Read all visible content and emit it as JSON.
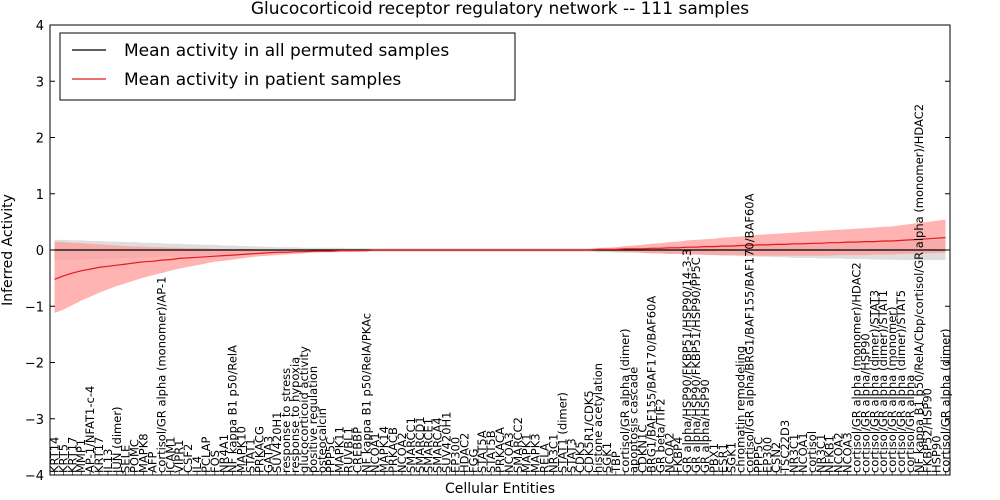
{
  "chart_data": {
    "type": "line",
    "title": "Glucocorticoid receptor regulatory network -- 111 samples",
    "xlabel": "Cellular Entities",
    "ylabel": "Inferred Activity",
    "ylim": [
      -4,
      4
    ],
    "yticks": [
      "4",
      "3",
      "2",
      "1",
      "0",
      "−1",
      "−2",
      "−3",
      "−4"
    ],
    "grid": false,
    "legend_position": "top-left",
    "colors": {
      "permuted": "#000000",
      "patient": "#e31a1c",
      "patient_band": "#ff9a9a",
      "permuted_band": "#c8c8c8"
    },
    "categories": [
      "KRT14",
      "KRT5",
      "KRT17",
      "MMP1",
      "AP-1/NFAT1-c-4",
      "KRT17",
      "IL13",
      "JUN (dimer)",
      "SELE",
      "POMC",
      "MAPK8",
      "AFP",
      "cortisol/GR alpha (monomer)/AP-1",
      "ICAM1",
      "VIPR1",
      "CSF2",
      "IL4",
      "PCLAP",
      "FOS",
      "NR4A1",
      "NF kappa B1 p50/RelA",
      "MAPK10",
      "STAT1",
      "PRKACG",
      "GATA3",
      "SUV420H1",
      "response to stress",
      "response to hypoxia",
      "glucocorticoid activity",
      "positive regulation",
      "osteocalcin",
      "PPP5C",
      "MAPK11",
      "RUVBL1",
      "CREBBP",
      "NF kappa B1 p50/RelA/PKAc",
      "NCOA1",
      "MAPK14",
      "PRKACB",
      "NCOA2",
      "SMARCC1",
      "SMARCD1",
      "SMARCE1",
      "SMARCA4",
      "SUV420H1",
      "EP300",
      "HDAC2",
      "FGG",
      "STAT5A",
      "STAT5B",
      "PRKACA",
      "NCOA3",
      "SMARCC2",
      "MAPK1",
      "MAPK3",
      "RELA",
      "NR3C1",
      "STAT1 (dimer)",
      "STAT3",
      "CDK5",
      "CDK5R1/CDK5",
      "histone acetylation",
      "SGK1",
      "TBP",
      "cortisol/GR alpha (dimer)",
      "apoptosis cascade",
      "CDKN1C",
      "BRG1/BAF155/BAF170/BAF60A",
      "GR beta/TIF2",
      "NCOA2",
      "FKBP4",
      "GR alpha/HSP90/FKBP51/HSP90/14-3-3",
      "GR alpha/HSP90/FKBP51/HSP90/PP5C",
      "GR alpha/HSP90",
      "PBX1",
      "ESR1",
      "SGK1",
      "chromatin remodeling",
      "cortisol/GR alpha/BRG1/BAF155/BAF170/BAF60A",
      "PPP5C",
      "EP300",
      "CSN2",
      "TSC22D3",
      "NR3C1",
      "NCOA1",
      "cortisol",
      "NR3C1",
      "NFKB1",
      "NCOA2",
      "NCOA3",
      "cortisol/GR alpha (monomer)/HDAC2",
      "cortisol/GR alpha/HSP90",
      "cortisol/GR alpha (dimer)/STAT3",
      "cortisol/GR alpha (dimer)/STAT1",
      "cortisol/GR alpha (monomer)",
      "cortisol/GR alpha (dimer)/STAT5",
      "cortisol/GR alpha",
      "NF kappa B1 p50/RelA/Cbp/cortisol/GR alpha (monomer)/HDAC2",
      "FKBP52/HSP90",
      "HSP90",
      "cortisol/GR alpha (dimer)"
    ],
    "series": [
      {
        "name": "Mean activity in all permuted samples",
        "color": "#000000",
        "values": [
          0.0,
          0.0,
          0.0,
          0.0,
          0.0,
          0.0,
          0.0,
          0.0,
          0.0,
          0.0,
          0.0,
          0.0,
          0.0,
          0.0,
          0.0,
          0.0,
          0.0,
          0.0,
          0.0,
          0.0,
          0.0,
          0.0,
          0.0,
          0.0,
          0.0,
          0.0,
          0.0,
          0.0,
          0.0,
          0.0,
          0.0,
          0.0,
          0.0,
          0.0,
          0.0,
          0.0,
          0.0,
          0.0,
          0.0,
          0.0,
          0.0,
          0.0,
          0.0,
          0.0,
          0.0,
          0.0,
          0.0,
          0.0,
          0.0,
          0.0,
          0.0,
          0.0,
          0.0,
          0.0,
          0.0,
          0.0,
          0.0,
          0.0,
          0.0,
          0.0,
          0.0,
          0.0,
          0.0,
          0.0,
          0.0,
          0.0,
          0.0,
          0.0,
          0.0,
          0.0,
          0.0,
          0.0,
          0.0,
          0.0,
          0.0,
          0.0,
          0.0,
          0.0,
          0.0,
          0.0,
          0.0,
          0.0,
          0.0,
          0.0,
          0.0,
          0.0,
          0.0,
          0.0,
          0.0,
          0.0,
          0.0,
          0.0,
          0.0,
          0.0,
          0.0,
          0.0,
          0.0,
          0.0,
          0.0,
          0.0,
          0.0
        ],
        "band_upper": [
          0.18,
          0.18,
          0.17,
          0.17,
          0.16,
          0.16,
          0.15,
          0.15,
          0.14,
          0.14,
          0.13,
          0.13,
          0.12,
          0.11,
          0.11,
          0.1,
          0.1,
          0.09,
          0.09,
          0.08,
          0.08,
          0.07,
          0.07,
          0.06,
          0.06,
          0.05,
          0.05,
          0.05,
          0.04,
          0.04,
          0.04,
          0.04,
          0.04,
          0.03,
          0.03,
          0.03,
          0.03,
          0.03,
          0.03,
          0.03,
          0.03,
          0.03,
          0.03,
          0.03,
          0.03,
          0.03,
          0.03,
          0.03,
          0.03,
          0.03,
          0.03,
          0.03,
          0.03,
          0.03,
          0.03,
          0.03,
          0.03,
          0.03,
          0.03,
          0.03,
          0.03,
          0.04,
          0.04,
          0.04,
          0.05,
          0.05,
          0.05,
          0.06,
          0.06,
          0.07,
          0.07,
          0.08,
          0.08,
          0.09,
          0.09,
          0.1,
          0.1,
          0.11,
          0.11,
          0.12,
          0.12,
          0.13,
          0.13,
          0.14,
          0.14,
          0.14,
          0.15,
          0.15,
          0.15,
          0.16,
          0.16,
          0.16,
          0.17,
          0.17,
          0.17,
          0.18,
          0.18,
          0.18,
          0.18,
          0.18,
          0.18
        ],
        "band_lower": [
          -0.18,
          -0.18,
          -0.17,
          -0.17,
          -0.16,
          -0.16,
          -0.15,
          -0.15,
          -0.14,
          -0.14,
          -0.13,
          -0.13,
          -0.12,
          -0.11,
          -0.11,
          -0.1,
          -0.1,
          -0.09,
          -0.09,
          -0.08,
          -0.08,
          -0.07,
          -0.07,
          -0.06,
          -0.06,
          -0.05,
          -0.05,
          -0.05,
          -0.04,
          -0.04,
          -0.04,
          -0.04,
          -0.04,
          -0.03,
          -0.03,
          -0.03,
          -0.03,
          -0.03,
          -0.03,
          -0.03,
          -0.03,
          -0.03,
          -0.03,
          -0.03,
          -0.03,
          -0.03,
          -0.03,
          -0.03,
          -0.03,
          -0.03,
          -0.03,
          -0.03,
          -0.03,
          -0.03,
          -0.03,
          -0.03,
          -0.03,
          -0.03,
          -0.03,
          -0.03,
          -0.03,
          -0.04,
          -0.04,
          -0.04,
          -0.05,
          -0.05,
          -0.05,
          -0.06,
          -0.06,
          -0.07,
          -0.07,
          -0.08,
          -0.08,
          -0.09,
          -0.09,
          -0.1,
          -0.1,
          -0.11,
          -0.11,
          -0.12,
          -0.12,
          -0.13,
          -0.13,
          -0.14,
          -0.14,
          -0.14,
          -0.15,
          -0.15,
          -0.15,
          -0.16,
          -0.16,
          -0.16,
          -0.17,
          -0.17,
          -0.17,
          -0.18,
          -0.18,
          -0.18,
          -0.18,
          -0.18,
          -0.18
        ]
      },
      {
        "name": "Mean activity in patient samples",
        "color": "#e31a1c",
        "values": [
          -0.52,
          -0.46,
          -0.41,
          -0.37,
          -0.34,
          -0.31,
          -0.29,
          -0.27,
          -0.25,
          -0.23,
          -0.21,
          -0.2,
          -0.18,
          -0.17,
          -0.15,
          -0.14,
          -0.13,
          -0.12,
          -0.11,
          -0.1,
          -0.09,
          -0.08,
          -0.07,
          -0.06,
          -0.05,
          -0.04,
          -0.04,
          -0.03,
          -0.03,
          -0.02,
          -0.02,
          -0.02,
          -0.01,
          -0.01,
          -0.01,
          -0.01,
          0.0,
          0.0,
          0.0,
          0.0,
          0.0,
          0.0,
          0.0,
          0.0,
          0.0,
          0.0,
          0.0,
          0.0,
          0.0,
          0.0,
          0.0,
          0.0,
          0.0,
          0.0,
          0.0,
          0.0,
          0.0,
          0.0,
          0.0,
          0.0,
          0.0,
          0.01,
          0.01,
          0.01,
          0.02,
          0.02,
          0.02,
          0.03,
          0.03,
          0.04,
          0.04,
          0.05,
          0.05,
          0.06,
          0.06,
          0.07,
          0.07,
          0.08,
          0.08,
          0.09,
          0.09,
          0.1,
          0.1,
          0.11,
          0.11,
          0.12,
          0.12,
          0.13,
          0.13,
          0.14,
          0.14,
          0.15,
          0.15,
          0.16,
          0.16,
          0.17,
          0.18,
          0.19,
          0.2,
          0.21,
          0.22
        ],
        "band_upper": [
          0.15,
          0.14,
          0.13,
          0.12,
          0.11,
          0.1,
          0.09,
          0.08,
          0.07,
          0.06,
          0.06,
          0.05,
          0.05,
          0.04,
          0.04,
          0.03,
          0.03,
          0.03,
          0.02,
          0.02,
          0.02,
          0.02,
          0.02,
          0.01,
          0.01,
          0.01,
          0.01,
          0.01,
          0.01,
          0.01,
          0.01,
          0.01,
          0.01,
          0.01,
          0.01,
          0.01,
          0.01,
          0.01,
          0.01,
          0.01,
          0.01,
          0.01,
          0.01,
          0.01,
          0.01,
          0.01,
          0.01,
          0.01,
          0.01,
          0.01,
          0.01,
          0.01,
          0.01,
          0.01,
          0.01,
          0.01,
          0.01,
          0.01,
          0.01,
          0.01,
          0.01,
          0.03,
          0.04,
          0.05,
          0.07,
          0.08,
          0.09,
          0.11,
          0.12,
          0.14,
          0.15,
          0.17,
          0.18,
          0.19,
          0.2,
          0.22,
          0.23,
          0.24,
          0.25,
          0.27,
          0.28,
          0.29,
          0.3,
          0.31,
          0.32,
          0.33,
          0.34,
          0.35,
          0.36,
          0.37,
          0.38,
          0.39,
          0.4,
          0.41,
          0.42,
          0.44,
          0.46,
          0.48,
          0.5,
          0.52,
          0.54
        ],
        "band_lower": [
          -1.12,
          -1.06,
          -0.98,
          -0.9,
          -0.83,
          -0.76,
          -0.7,
          -0.64,
          -0.59,
          -0.54,
          -0.49,
          -0.45,
          -0.41,
          -0.37,
          -0.33,
          -0.3,
          -0.27,
          -0.24,
          -0.21,
          -0.19,
          -0.17,
          -0.15,
          -0.13,
          -0.11,
          -0.1,
          -0.09,
          -0.08,
          -0.07,
          -0.06,
          -0.05,
          -0.04,
          -0.04,
          -0.03,
          -0.03,
          -0.03,
          -0.02,
          -0.02,
          -0.02,
          -0.02,
          -0.02,
          -0.02,
          -0.02,
          -0.02,
          -0.02,
          -0.02,
          -0.02,
          -0.02,
          -0.02,
          -0.02,
          -0.02,
          -0.02,
          -0.02,
          -0.02,
          -0.02,
          -0.02,
          -0.02,
          -0.02,
          -0.02,
          -0.02,
          -0.02,
          -0.02,
          -0.02,
          -0.02,
          -0.03,
          -0.03,
          -0.04,
          -0.05,
          -0.06,
          -0.06,
          -0.07,
          -0.07,
          -0.08,
          -0.08,
          -0.08,
          -0.09,
          -0.09,
          -0.09,
          -0.09,
          -0.1,
          -0.1,
          -0.1,
          -0.1,
          -0.1,
          -0.1,
          -0.1,
          -0.1,
          -0.1,
          -0.1,
          -0.09,
          -0.09,
          -0.09,
          -0.09,
          -0.08,
          -0.08,
          -0.08,
          -0.07,
          -0.07,
          -0.06,
          -0.06,
          -0.05,
          -0.05
        ]
      }
    ]
  }
}
